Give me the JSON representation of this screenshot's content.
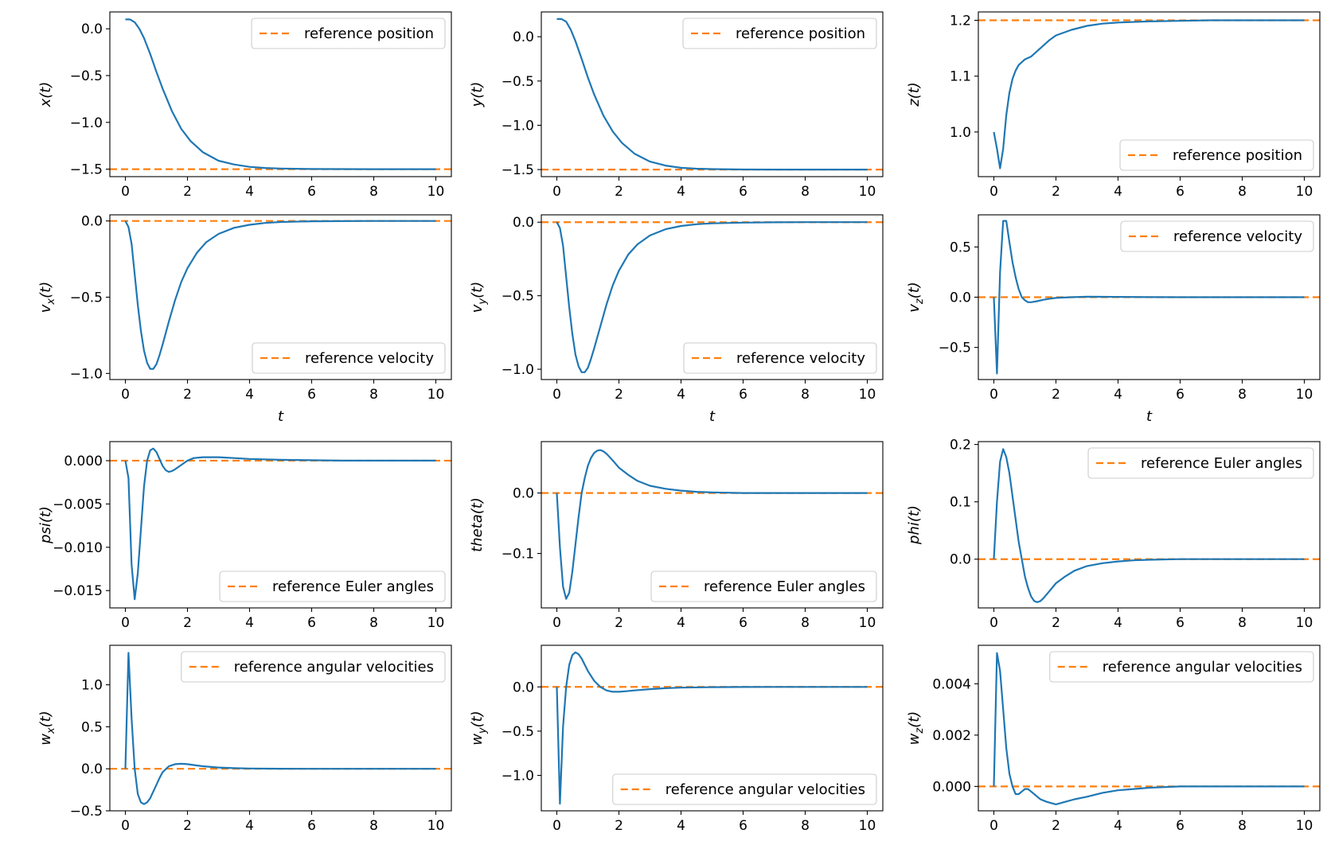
{
  "colors": {
    "series": "#1f77b4",
    "reference": "#ff7f0e"
  },
  "chart_data": [
    {
      "id": "x",
      "type": "line",
      "ylabel": "x(t)",
      "xlabel": "",
      "xlim": [
        -0.5,
        10.5
      ],
      "ylim": [
        -1.58,
        0.18
      ],
      "xticks": [
        0,
        2,
        4,
        6,
        8,
        10
      ],
      "xtick_labels": [
        "0",
        "2",
        "4",
        "6",
        "8",
        "10"
      ],
      "yticks": [
        -1.5,
        -1.0,
        -0.5,
        0.0
      ],
      "ytick_labels": [
        "−1.5",
        "−1.0",
        "−0.5",
        "0.0"
      ],
      "legend": {
        "label": "reference position",
        "position": "upper right"
      },
      "reference": -1.5,
      "series": {
        "x": [
          0,
          0.15,
          0.3,
          0.45,
          0.6,
          0.8,
          1.0,
          1.2,
          1.5,
          1.8,
          2.1,
          2.5,
          3,
          3.5,
          4,
          4.5,
          5,
          6,
          7,
          8,
          9,
          10
        ],
        "y": [
          0.1,
          0.1,
          0.07,
          0.0,
          -0.1,
          -0.27,
          -0.46,
          -0.64,
          -0.88,
          -1.07,
          -1.2,
          -1.32,
          -1.41,
          -1.45,
          -1.475,
          -1.487,
          -1.493,
          -1.498,
          -1.499,
          -1.5,
          -1.5,
          -1.5
        ]
      }
    },
    {
      "id": "y",
      "type": "line",
      "ylabel": "y(t)",
      "xlabel": "",
      "xlim": [
        -0.5,
        10.5
      ],
      "ylim": [
        -1.58,
        0.28
      ],
      "xticks": [
        0,
        2,
        4,
        6,
        8,
        10
      ],
      "xtick_labels": [
        "0",
        "2",
        "4",
        "6",
        "8",
        "10"
      ],
      "yticks": [
        -1.5,
        -1.0,
        -0.5,
        0.0
      ],
      "ytick_labels": [
        "−1.5",
        "−1.0",
        "−0.5",
        "0.0"
      ],
      "legend": {
        "label": "reference position",
        "position": "upper right"
      },
      "reference": -1.5,
      "series": {
        "x": [
          0,
          0.15,
          0.3,
          0.45,
          0.6,
          0.8,
          1.0,
          1.2,
          1.5,
          1.8,
          2.1,
          2.5,
          3,
          3.5,
          4,
          4.5,
          5,
          6,
          7,
          8,
          9,
          10
        ],
        "y": [
          0.2,
          0.2,
          0.17,
          0.08,
          -0.05,
          -0.25,
          -0.46,
          -0.65,
          -0.89,
          -1.07,
          -1.2,
          -1.32,
          -1.41,
          -1.455,
          -1.48,
          -1.49,
          -1.495,
          -1.499,
          -1.5,
          -1.5,
          -1.5,
          -1.5
        ]
      }
    },
    {
      "id": "z",
      "type": "line",
      "ylabel": "z(t)",
      "xlabel": "",
      "xlim": [
        -0.5,
        10.5
      ],
      "ylim": [
        0.92,
        1.215
      ],
      "xticks": [
        0,
        2,
        4,
        6,
        8,
        10
      ],
      "xtick_labels": [
        "0",
        "2",
        "4",
        "6",
        "8",
        "10"
      ],
      "yticks": [
        1.0,
        1.1,
        1.2
      ],
      "ytick_labels": [
        "1.0",
        "1.1",
        "1.2"
      ],
      "legend": {
        "label": "reference position",
        "position": "lower right"
      },
      "reference": 1.2,
      "series": {
        "x": [
          0,
          0.1,
          0.2,
          0.3,
          0.4,
          0.5,
          0.6,
          0.7,
          0.8,
          1.0,
          1.2,
          1.5,
          1.8,
          2.0,
          2.5,
          3,
          3.5,
          4,
          5,
          6,
          7,
          8,
          9,
          10
        ],
        "y": [
          1.0,
          0.97,
          0.935,
          0.97,
          1.03,
          1.07,
          1.095,
          1.11,
          1.12,
          1.13,
          1.135,
          1.15,
          1.165,
          1.173,
          1.183,
          1.19,
          1.194,
          1.196,
          1.198,
          1.199,
          1.2,
          1.2,
          1.2,
          1.2
        ]
      }
    },
    {
      "id": "vx",
      "type": "line",
      "ylabel": "v_x(t)",
      "xlabel": "t",
      "xlim": [
        -0.5,
        10.5
      ],
      "ylim": [
        -1.04,
        0.04
      ],
      "xticks": [
        0,
        2,
        4,
        6,
        8,
        10
      ],
      "xtick_labels": [
        "0",
        "2",
        "4",
        "6",
        "8",
        "10"
      ],
      "yticks": [
        -1.0,
        -0.5,
        0.0
      ],
      "ytick_labels": [
        "−1.0",
        "−0.5",
        "0.0"
      ],
      "legend": {
        "label": "reference velocity",
        "position": "lower right"
      },
      "reference": 0.0,
      "series": {
        "x": [
          0,
          0.1,
          0.2,
          0.3,
          0.4,
          0.5,
          0.6,
          0.7,
          0.8,
          0.9,
          1.0,
          1.1,
          1.2,
          1.4,
          1.6,
          1.8,
          2.0,
          2.3,
          2.6,
          3,
          3.5,
          4,
          4.5,
          5,
          6,
          7,
          8,
          9,
          10
        ],
        "y": [
          0.0,
          -0.04,
          -0.15,
          -0.35,
          -0.55,
          -0.72,
          -0.85,
          -0.93,
          -0.97,
          -0.97,
          -0.94,
          -0.88,
          -0.81,
          -0.66,
          -0.52,
          -0.4,
          -0.31,
          -0.21,
          -0.14,
          -0.085,
          -0.045,
          -0.025,
          -0.013,
          -0.007,
          -0.002,
          -0.001,
          0,
          0,
          0
        ]
      }
    },
    {
      "id": "vy",
      "type": "line",
      "ylabel": "v_y(t)",
      "xlabel": "t",
      "xlim": [
        -0.5,
        10.5
      ],
      "ylim": [
        -1.07,
        0.05
      ],
      "xticks": [
        0,
        2,
        4,
        6,
        8,
        10
      ],
      "xtick_labels": [
        "0",
        "2",
        "4",
        "6",
        "8",
        "10"
      ],
      "yticks": [
        -1.0,
        -0.5,
        0.0
      ],
      "ytick_labels": [
        "−1.0",
        "−0.5",
        "0.0"
      ],
      "legend": {
        "label": "reference velocity",
        "position": "lower right"
      },
      "reference": 0.0,
      "series": {
        "x": [
          0,
          0.1,
          0.2,
          0.3,
          0.4,
          0.5,
          0.6,
          0.7,
          0.8,
          0.9,
          1.0,
          1.1,
          1.2,
          1.4,
          1.6,
          1.8,
          2.0,
          2.3,
          2.6,
          3,
          3.5,
          4,
          4.5,
          5,
          6,
          7,
          8,
          9,
          10
        ],
        "y": [
          0.0,
          -0.04,
          -0.16,
          -0.37,
          -0.58,
          -0.76,
          -0.9,
          -0.98,
          -1.02,
          -1.02,
          -0.99,
          -0.93,
          -0.86,
          -0.71,
          -0.56,
          -0.43,
          -0.33,
          -0.22,
          -0.15,
          -0.09,
          -0.048,
          -0.026,
          -0.014,
          -0.008,
          -0.003,
          -0.001,
          0,
          0,
          0
        ]
      }
    },
    {
      "id": "vz",
      "type": "line",
      "ylabel": "v_z(t)",
      "xlabel": "t",
      "xlim": [
        -0.5,
        10.5
      ],
      "ylim": [
        -0.82,
        0.82
      ],
      "xticks": [
        0,
        2,
        4,
        6,
        8,
        10
      ],
      "xtick_labels": [
        "0",
        "2",
        "4",
        "6",
        "8",
        "10"
      ],
      "yticks": [
        -0.5,
        0.0,
        0.5
      ],
      "ytick_labels": [
        "−0.5",
        "0.0",
        "0.5"
      ],
      "legend": {
        "label": "reference velocity",
        "position": "upper right"
      },
      "reference": 0.0,
      "series": {
        "x": [
          0,
          0.1,
          0.2,
          0.3,
          0.4,
          0.5,
          0.6,
          0.7,
          0.8,
          0.9,
          1.0,
          1.1,
          1.2,
          1.4,
          1.6,
          1.8,
          2.0,
          2.5,
          3,
          3.5,
          4,
          5,
          6,
          7,
          8,
          9,
          10
        ],
        "y": [
          0.0,
          -0.76,
          0.25,
          0.76,
          0.76,
          0.55,
          0.35,
          0.2,
          0.08,
          0.0,
          -0.03,
          -0.05,
          -0.05,
          -0.04,
          -0.025,
          -0.015,
          -0.007,
          0.0,
          0.005,
          0.004,
          0.003,
          0.001,
          0,
          0,
          0,
          0,
          0
        ]
      }
    },
    {
      "id": "psi",
      "type": "line",
      "ylabel": "psi(t)",
      "xlabel": "",
      "xlim": [
        -0.5,
        10.5
      ],
      "ylim": [
        -0.017,
        0.0022
      ],
      "xticks": [
        0,
        2,
        4,
        6,
        8,
        10
      ],
      "xtick_labels": [
        "0",
        "2",
        "4",
        "6",
        "8",
        "10"
      ],
      "yticks": [
        -0.015,
        -0.01,
        -0.005,
        0.0
      ],
      "ytick_labels": [
        "−0.015",
        "−0.010",
        "−0.005",
        "0.000"
      ],
      "legend": {
        "label": "reference Euler angles",
        "position": "lower right"
      },
      "reference": 0.0,
      "series": {
        "x": [
          0,
          0.1,
          0.2,
          0.3,
          0.4,
          0.5,
          0.6,
          0.7,
          0.8,
          0.9,
          1.0,
          1.1,
          1.2,
          1.3,
          1.4,
          1.5,
          1.6,
          1.8,
          2.0,
          2.2,
          2.5,
          3,
          3.5,
          4,
          5,
          6,
          7,
          8,
          9,
          10
        ],
        "y": [
          0.0,
          -0.002,
          -0.012,
          -0.016,
          -0.013,
          -0.008,
          -0.003,
          0.0,
          0.0012,
          0.0014,
          0.001,
          0.0002,
          -0.0006,
          -0.0011,
          -0.0013,
          -0.0012,
          -0.001,
          -0.0005,
          0.0,
          0.0003,
          0.0004,
          0.0004,
          0.0003,
          0.0002,
          0.0001,
          5e-05,
          0,
          0,
          0,
          0
        ]
      }
    },
    {
      "id": "theta",
      "type": "line",
      "ylabel": "theta(t)",
      "xlabel": "",
      "xlim": [
        -0.5,
        10.5
      ],
      "ylim": [
        -0.19,
        0.085
      ],
      "xticks": [
        0,
        2,
        4,
        6,
        8,
        10
      ],
      "xtick_labels": [
        "0",
        "2",
        "4",
        "6",
        "8",
        "10"
      ],
      "yticks": [
        -0.1,
        0.0
      ],
      "ytick_labels": [
        "−0.1",
        "0.0"
      ],
      "legend": {
        "label": "reference Euler angles",
        "position": "lower right"
      },
      "reference": 0.0,
      "series": {
        "x": [
          0,
          0.1,
          0.2,
          0.3,
          0.4,
          0.5,
          0.6,
          0.7,
          0.8,
          0.9,
          1.0,
          1.1,
          1.2,
          1.3,
          1.4,
          1.5,
          1.6,
          1.8,
          2.0,
          2.3,
          2.6,
          3,
          3.5,
          4,
          4.5,
          5,
          6,
          7,
          8,
          9,
          10
        ],
        "y": [
          0.0,
          -0.09,
          -0.155,
          -0.175,
          -0.165,
          -0.13,
          -0.085,
          -0.04,
          0.0,
          0.025,
          0.045,
          0.058,
          0.066,
          0.07,
          0.071,
          0.069,
          0.065,
          0.054,
          0.042,
          0.03,
          0.02,
          0.012,
          0.007,
          0.004,
          0.002,
          0.001,
          0,
          0,
          0,
          0,
          0
        ]
      }
    },
    {
      "id": "phi",
      "type": "line",
      "ylabel": "phi(t)",
      "xlabel": "",
      "xlim": [
        -0.5,
        10.5
      ],
      "ylim": [
        -0.085,
        0.205
      ],
      "xticks": [
        0,
        2,
        4,
        6,
        8,
        10
      ],
      "xtick_labels": [
        "0",
        "2",
        "4",
        "6",
        "8",
        "10"
      ],
      "yticks": [
        0.0,
        0.1,
        0.2
      ],
      "ytick_labels": [
        "0.0",
        "0.1",
        "0.2"
      ],
      "legend": {
        "label": "reference Euler angles",
        "position": "upper right"
      },
      "reference": 0.0,
      "series": {
        "x": [
          0,
          0.1,
          0.2,
          0.3,
          0.4,
          0.5,
          0.6,
          0.7,
          0.8,
          0.9,
          1.0,
          1.1,
          1.2,
          1.3,
          1.4,
          1.5,
          1.6,
          1.8,
          2.0,
          2.3,
          2.6,
          3,
          3.5,
          4,
          4.5,
          5,
          6,
          7,
          8,
          9,
          10
        ],
        "y": [
          0.0,
          0.1,
          0.17,
          0.192,
          0.178,
          0.15,
          0.11,
          0.07,
          0.03,
          0.0,
          -0.03,
          -0.05,
          -0.065,
          -0.073,
          -0.075,
          -0.073,
          -0.068,
          -0.055,
          -0.042,
          -0.03,
          -0.02,
          -0.012,
          -0.007,
          -0.004,
          -0.002,
          -0.001,
          0,
          0,
          0,
          0,
          0
        ]
      }
    },
    {
      "id": "wx",
      "type": "line",
      "ylabel": "w_x(t)",
      "xlabel": "",
      "xlim": [
        -0.5,
        10.5
      ],
      "ylim": [
        -0.5,
        1.47
      ],
      "xticks": [
        0,
        2,
        4,
        6,
        8,
        10
      ],
      "xtick_labels": [
        "0",
        "2",
        "4",
        "6",
        "8",
        "10"
      ],
      "yticks": [
        -0.5,
        0.0,
        0.5,
        1.0
      ],
      "ytick_labels": [
        "−0.5",
        "0.0",
        "0.5",
        "1.0"
      ],
      "legend": {
        "label": "reference angular velocities",
        "position": "upper right"
      },
      "reference": 0.0,
      "series": {
        "x": [
          0,
          0.1,
          0.2,
          0.3,
          0.4,
          0.5,
          0.6,
          0.7,
          0.8,
          0.9,
          1.0,
          1.1,
          1.2,
          1.4,
          1.6,
          1.8,
          2.0,
          2.2,
          2.5,
          3,
          3.5,
          4,
          5,
          6,
          7,
          8,
          9,
          10
        ],
        "y": [
          0.0,
          1.38,
          0.6,
          0.0,
          -0.3,
          -0.4,
          -0.42,
          -0.4,
          -0.35,
          -0.27,
          -0.19,
          -0.11,
          -0.04,
          0.03,
          0.055,
          0.06,
          0.055,
          0.045,
          0.03,
          0.015,
          0.008,
          0.004,
          0.001,
          0,
          0,
          0,
          0,
          0
        ]
      }
    },
    {
      "id": "wy",
      "type": "line",
      "ylabel": "w_y(t)",
      "xlabel": "",
      "xlim": [
        -0.5,
        10.5
      ],
      "ylim": [
        -1.4,
        0.47
      ],
      "xticks": [
        0,
        2,
        4,
        6,
        8,
        10
      ],
      "xtick_labels": [
        "0",
        "2",
        "4",
        "6",
        "8",
        "10"
      ],
      "yticks": [
        -1.0,
        -0.5,
        0.0
      ],
      "ytick_labels": [
        "−1.0",
        "−0.5",
        "0.0"
      ],
      "legend": {
        "label": "reference angular velocities",
        "position": "lower right"
      },
      "reference": 0.0,
      "series": {
        "x": [
          0,
          0.1,
          0.2,
          0.3,
          0.4,
          0.5,
          0.6,
          0.7,
          0.8,
          0.9,
          1.0,
          1.2,
          1.4,
          1.6,
          1.8,
          2.0,
          2.2,
          2.5,
          3,
          3.5,
          4,
          5,
          6,
          7,
          8,
          9,
          10
        ],
        "y": [
          0.0,
          -1.32,
          -0.45,
          0.0,
          0.25,
          0.36,
          0.39,
          0.37,
          0.32,
          0.25,
          0.18,
          0.07,
          0.0,
          -0.04,
          -0.055,
          -0.055,
          -0.05,
          -0.04,
          -0.025,
          -0.015,
          -0.008,
          -0.003,
          -0.001,
          0,
          0,
          0,
          0
        ]
      }
    },
    {
      "id": "wz",
      "type": "line",
      "ylabel": "w_z(t)",
      "xlabel": "",
      "xlim": [
        -0.5,
        10.5
      ],
      "ylim": [
        -0.00095,
        0.0055
      ],
      "xticks": [
        0,
        2,
        4,
        6,
        8,
        10
      ],
      "xtick_labels": [
        "0",
        "2",
        "4",
        "6",
        "8",
        "10"
      ],
      "yticks": [
        0.0,
        0.002,
        0.004
      ],
      "ytick_labels": [
        "0.000",
        "0.002",
        "0.004"
      ],
      "legend": {
        "label": "reference angular velocities",
        "position": "upper right"
      },
      "reference": 0.0,
      "series": {
        "x": [
          0,
          0.1,
          0.2,
          0.3,
          0.4,
          0.5,
          0.6,
          0.7,
          0.8,
          0.9,
          1.0,
          1.1,
          1.2,
          1.3,
          1.4,
          1.5,
          1.7,
          2.0,
          2.3,
          2.6,
          3,
          3.5,
          4,
          4.5,
          5,
          6,
          7,
          8,
          9,
          10
        ],
        "y": [
          0.0,
          0.0052,
          0.0045,
          0.003,
          0.0015,
          0.0005,
          0.0,
          -0.0003,
          -0.0003,
          -0.0002,
          -0.0001,
          -0.0001,
          -0.0002,
          -0.0003,
          -0.0004,
          -0.0005,
          -0.0006,
          -0.0007,
          -0.0006,
          -0.0005,
          -0.0004,
          -0.00025,
          -0.00015,
          -0.0001,
          -5e-05,
          0,
          0,
          0,
          0,
          0
        ]
      }
    }
  ]
}
